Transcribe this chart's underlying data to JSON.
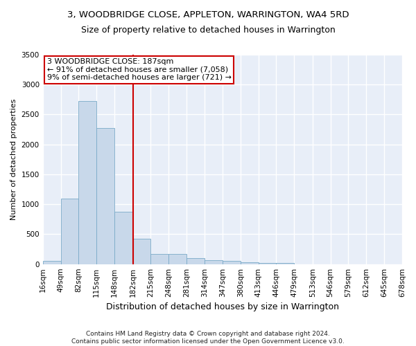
{
  "title": "3, WOODBRIDGE CLOSE, APPLETON, WARRINGTON, WA4 5RD",
  "subtitle": "Size of property relative to detached houses in Warrington",
  "xlabel": "Distribution of detached houses by size in Warrington",
  "ylabel": "Number of detached properties",
  "bar_color": "#c8d8ea",
  "bar_edge_color": "#7aaac8",
  "background_color": "#e8eef8",
  "grid_color": "#ffffff",
  "annotation_text": "3 WOODBRIDGE CLOSE: 187sqm\n← 91% of detached houses are smaller (7,058)\n9% of semi-detached houses are larger (721) →",
  "vline_x": 182,
  "vline_color": "#cc0000",
  "bin_edges": [
    16,
    49,
    82,
    115,
    148,
    182,
    215,
    248,
    281,
    314,
    347,
    380,
    413,
    446,
    479,
    513,
    546,
    579,
    612,
    645,
    678
  ],
  "bin_labels": [
    "16sqm",
    "49sqm",
    "82sqm",
    "115sqm",
    "148sqm",
    "182sqm",
    "215sqm",
    "248sqm",
    "281sqm",
    "314sqm",
    "347sqm",
    "380sqm",
    "413sqm",
    "446sqm",
    "479sqm",
    "513sqm",
    "546sqm",
    "579sqm",
    "612sqm",
    "645sqm",
    "678sqm"
  ],
  "bar_heights": [
    50,
    1100,
    2720,
    2280,
    880,
    420,
    175,
    175,
    105,
    70,
    55,
    35,
    25,
    25,
    0,
    0,
    0,
    0,
    0,
    0
  ],
  "ylim": [
    0,
    3500
  ],
  "yticks": [
    0,
    500,
    1000,
    1500,
    2000,
    2500,
    3000,
    3500
  ],
  "footnote": "Contains HM Land Registry data © Crown copyright and database right 2024.\nContains public sector information licensed under the Open Government Licence v3.0.",
  "title_fontsize": 9.5,
  "subtitle_fontsize": 9,
  "ylabel_fontsize": 8,
  "xlabel_fontsize": 9,
  "tick_fontsize": 7.5,
  "annot_fontsize": 8,
  "footnote_fontsize": 6.5
}
